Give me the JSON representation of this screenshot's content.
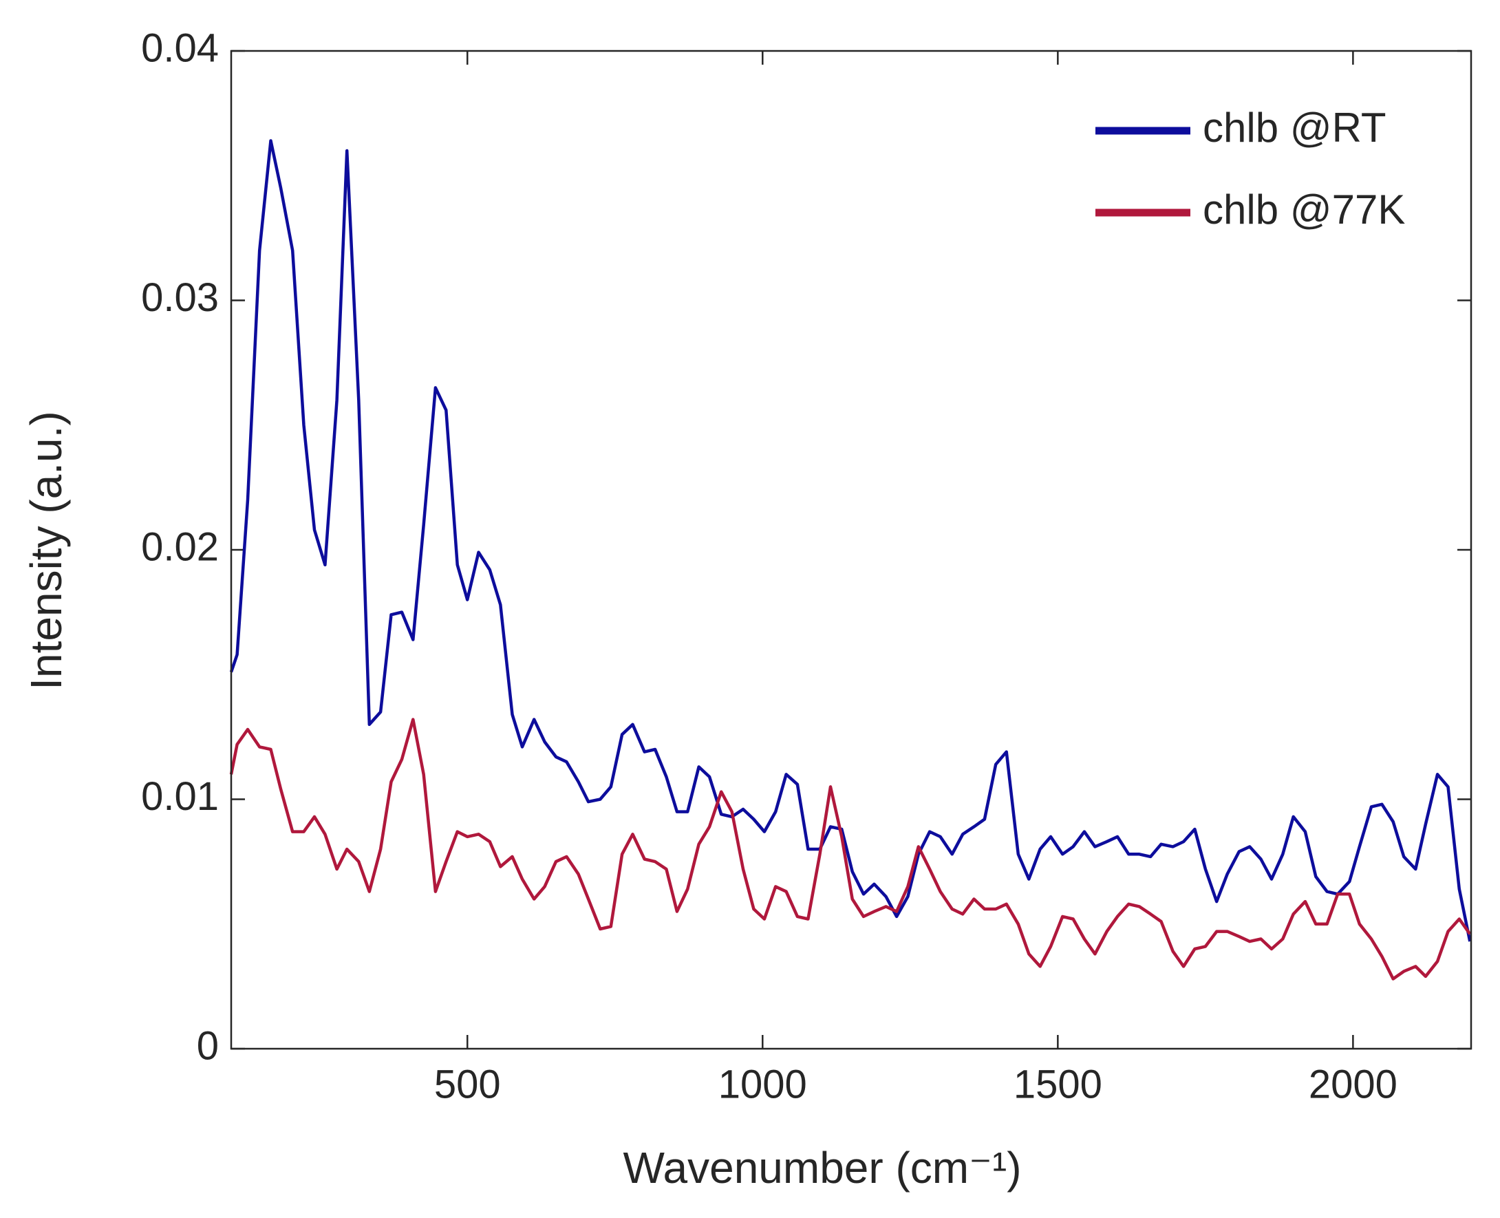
{
  "chart_data": {
    "type": "line",
    "xlabel": "Wavenumber (cm⁻¹)",
    "ylabel": "Intensity (a.u.)",
    "xlim": [
      100,
      2200
    ],
    "ylim": [
      0,
      0.04
    ],
    "xticks": [
      500,
      1000,
      1500,
      2000
    ],
    "yticks": [
      0,
      0.01,
      0.02,
      0.03,
      0.04
    ],
    "legend": "upper right",
    "grid": false,
    "x": [
      100,
      110,
      128,
      148,
      167,
      184,
      204,
      223,
      241,
      259,
      279,
      296,
      316,
      334,
      353,
      371,
      389,
      408,
      426,
      446,
      464,
      483,
      500,
      519,
      538,
      556,
      576,
      593,
      613,
      631,
      650,
      668,
      688,
      705,
      725,
      743,
      762,
      780,
      800,
      818,
      837,
      855,
      873,
      892,
      910,
      930,
      948,
      967,
      985,
      1003,
      1022,
      1040,
      1059,
      1077,
      1097,
      1115,
      1134,
      1152,
      1171,
      1189,
      1209,
      1227,
      1246,
      1264,
      1283,
      1301,
      1321,
      1339,
      1358,
      1376,
      1395,
      1413,
      1433,
      1451,
      1470,
      1488,
      1508,
      1526,
      1545,
      1563,
      1583,
      1601,
      1620,
      1638,
      1657,
      1675,
      1695,
      1713,
      1732,
      1750,
      1769,
      1787,
      1807,
      1825,
      1844,
      1862,
      1881,
      1899,
      1919,
      1937,
      1956,
      1974,
      1994,
      2011,
      2031,
      2049,
      2068,
      2086,
      2106,
      2123,
      2143,
      2161,
      2180,
      2198
    ],
    "series": [
      {
        "name": "chlb @RT",
        "color": "#0d0d9c",
        "values": [
          0.0151,
          0.0158,
          0.022,
          0.032,
          0.0364,
          0.0345,
          0.032,
          0.025,
          0.0208,
          0.0194,
          0.026,
          0.036,
          0.026,
          0.013,
          0.0135,
          0.0174,
          0.0175,
          0.0164,
          0.021,
          0.0265,
          0.0256,
          0.0194,
          0.018,
          0.0199,
          0.0192,
          0.0178,
          0.0134,
          0.0121,
          0.0132,
          0.0123,
          0.0117,
          0.0115,
          0.0107,
          0.0099,
          0.01,
          0.0105,
          0.0126,
          0.013,
          0.0119,
          0.012,
          0.0109,
          0.0095,
          0.0095,
          0.0113,
          0.0109,
          0.0094,
          0.0093,
          0.0096,
          0.0092,
          0.0087,
          0.0095,
          0.011,
          0.0106,
          0.008,
          0.008,
          0.0089,
          0.0088,
          0.0071,
          0.0062,
          0.0066,
          0.0061,
          0.0053,
          0.0061,
          0.0078,
          0.0087,
          0.0085,
          0.0078,
          0.0086,
          0.0089,
          0.0092,
          0.0114,
          0.0119,
          0.0078,
          0.0068,
          0.008,
          0.0085,
          0.0078,
          0.0081,
          0.0087,
          0.0081,
          0.0083,
          0.0085,
          0.0078,
          0.0078,
          0.0077,
          0.0082,
          0.0081,
          0.0083,
          0.0088,
          0.0072,
          0.0059,
          0.007,
          0.0079,
          0.0081,
          0.0076,
          0.0068,
          0.0078,
          0.0093,
          0.0087,
          0.0069,
          0.0063,
          0.0062,
          0.0067,
          0.0081,
          0.0097,
          0.0098,
          0.0091,
          0.0077,
          0.0072,
          0.009,
          0.011,
          0.0105,
          0.0064,
          0.0043
        ]
      },
      {
        "name": "chlb @77K",
        "color": "#b0183c",
        "values": [
          0.011,
          0.0122,
          0.0128,
          0.0121,
          0.012,
          0.0104,
          0.0087,
          0.0087,
          0.0093,
          0.0086,
          0.0072,
          0.008,
          0.0075,
          0.0063,
          0.008,
          0.0107,
          0.0116,
          0.0132,
          0.011,
          0.0063,
          0.0075,
          0.0087,
          0.0085,
          0.0086,
          0.0083,
          0.0073,
          0.0077,
          0.0068,
          0.006,
          0.0065,
          0.0075,
          0.0077,
          0.007,
          0.006,
          0.0048,
          0.0049,
          0.0078,
          0.0086,
          0.0076,
          0.0075,
          0.0072,
          0.0055,
          0.0064,
          0.0082,
          0.0089,
          0.0103,
          0.0095,
          0.0072,
          0.0056,
          0.0052,
          0.0065,
          0.0063,
          0.0053,
          0.0052,
          0.0078,
          0.0105,
          0.0085,
          0.006,
          0.0053,
          0.0055,
          0.0057,
          0.0055,
          0.0065,
          0.0081,
          0.0072,
          0.0063,
          0.0056,
          0.0054,
          0.006,
          0.0056,
          0.0056,
          0.0058,
          0.005,
          0.0038,
          0.0033,
          0.0041,
          0.0053,
          0.0052,
          0.0044,
          0.0038,
          0.0047,
          0.0053,
          0.0058,
          0.0057,
          0.0054,
          0.0051,
          0.0039,
          0.0033,
          0.004,
          0.0041,
          0.0047,
          0.0047,
          0.0045,
          0.0043,
          0.0044,
          0.004,
          0.0044,
          0.0054,
          0.0059,
          0.005,
          0.005,
          0.0062,
          0.0062,
          0.005,
          0.0044,
          0.0037,
          0.0028,
          0.0031,
          0.0033,
          0.0029,
          0.0035,
          0.0047,
          0.0052,
          0.0046
        ]
      }
    ]
  }
}
